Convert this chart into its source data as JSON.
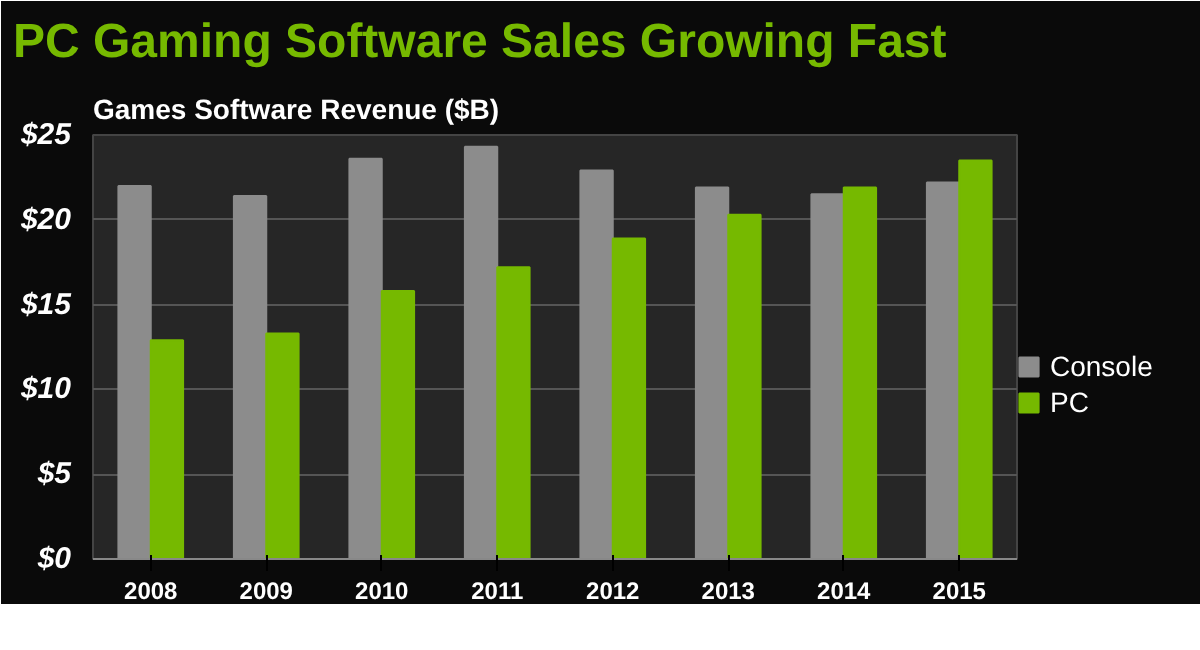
{
  "chart_data": {
    "type": "bar",
    "title": "PC Gaming Software Sales Growing Fast",
    "subtitle": "Games Software Revenue ($B)",
    "categories": [
      "2008",
      "2009",
      "2010",
      "2011",
      "2012",
      "2013",
      "2014",
      "2015"
    ],
    "series": [
      {
        "name": "Console",
        "color": "#8c8c8c",
        "values": [
          22.0,
          21.4,
          23.6,
          24.3,
          22.9,
          21.9,
          21.5,
          22.2
        ]
      },
      {
        "name": "PC",
        "color": "#76b900",
        "values": [
          12.9,
          13.3,
          15.8,
          17.2,
          18.9,
          20.3,
          21.9,
          23.5
        ]
      }
    ],
    "ylim": [
      0,
      25
    ],
    "yticks": [
      {
        "value": 0,
        "label": "$0"
      },
      {
        "value": 5,
        "label": "$5"
      },
      {
        "value": 10,
        "label": "$10"
      },
      {
        "value": 15,
        "label": "$15"
      },
      {
        "value": 20,
        "label": "$20"
      },
      {
        "value": 25,
        "label": "$25"
      }
    ],
    "grid": "y",
    "legend": "right"
  }
}
